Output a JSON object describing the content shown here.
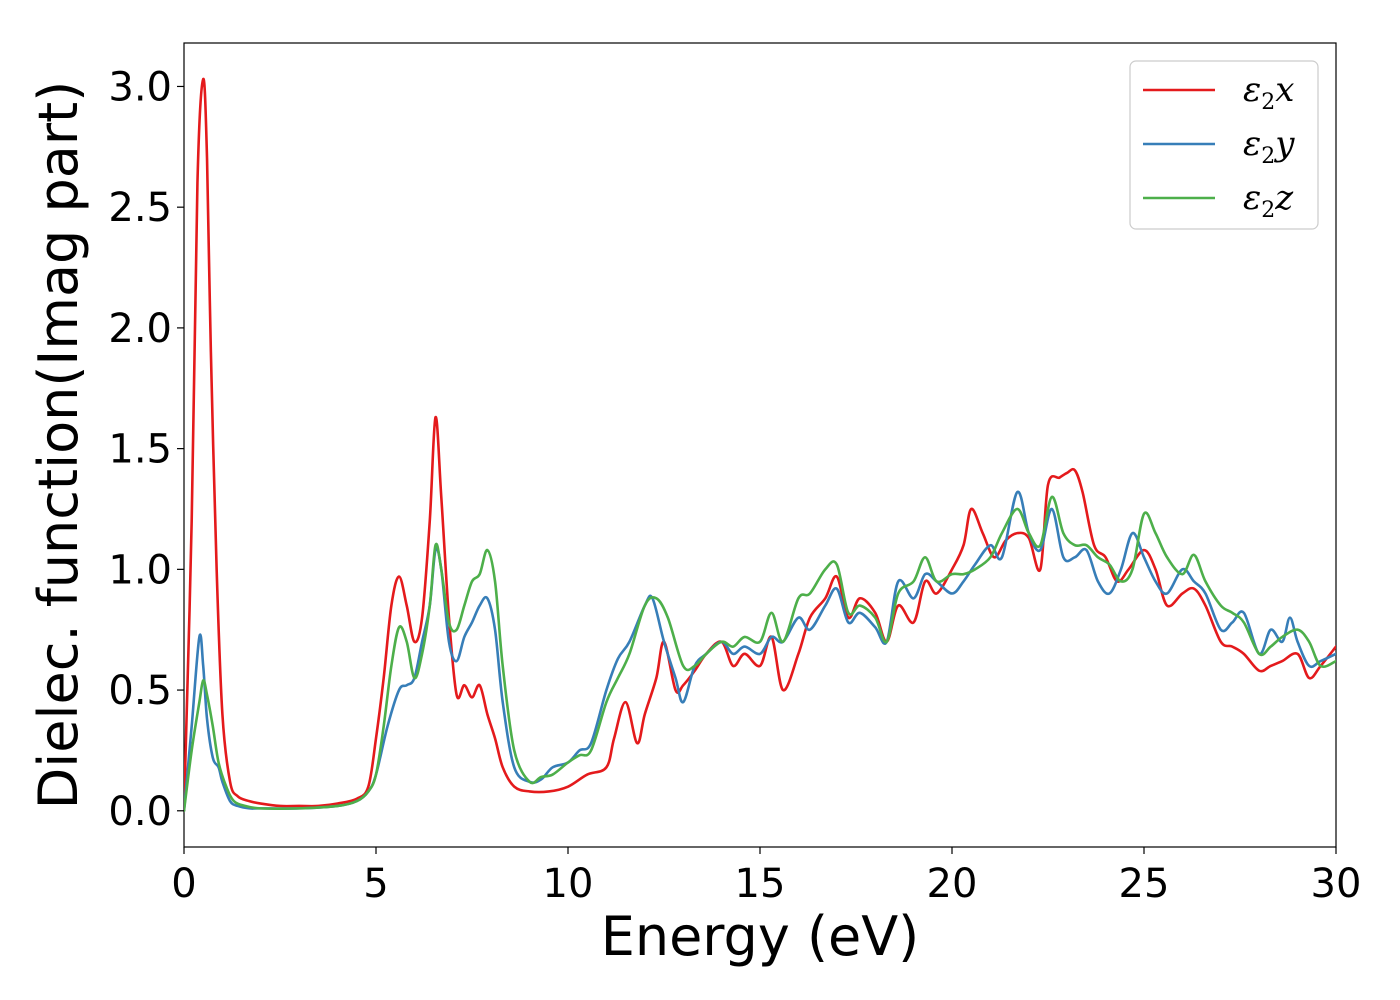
{
  "chart_data": {
    "type": "line",
    "title": "",
    "xlabel": "Energy (eV)",
    "ylabel": "Dielec. function(Imag part)",
    "xlim": [
      0,
      30
    ],
    "ylim": [
      -0.15,
      3.18
    ],
    "xticks": [
      0,
      5,
      10,
      15,
      20,
      25,
      30
    ],
    "yticks": [
      0.0,
      0.5,
      1.0,
      1.5,
      2.0,
      2.5,
      3.0
    ],
    "xtick_labels": [
      "0",
      "5",
      "10",
      "15",
      "20",
      "25",
      "30"
    ],
    "ytick_labels": [
      "0.0",
      "0.5",
      "1.0",
      "1.5",
      "2.0",
      "2.5",
      "3.0"
    ],
    "grid": false,
    "legend": {
      "position": "top-right"
    },
    "series": [
      {
        "name": "ε2x",
        "name_main": "ε",
        "name_sub": "2",
        "name_var": "x",
        "color": "#e41a1c",
        "x": [
          0,
          0.2,
          0.35,
          0.5,
          0.6,
          0.7,
          0.85,
          1.0,
          1.2,
          1.4,
          1.7,
          2.0,
          2.5,
          3,
          3.5,
          4,
          4.5,
          4.8,
          5.0,
          5.2,
          5.4,
          5.6,
          5.8,
          6.0,
          6.2,
          6.4,
          6.55,
          6.7,
          6.9,
          7.1,
          7.3,
          7.5,
          7.7,
          7.9,
          8.1,
          8.3,
          8.6,
          9.0,
          9.5,
          10.0,
          10.5,
          11.0,
          11.2,
          11.5,
          11.8,
          12.0,
          12.3,
          12.5,
          12.8,
          13.0,
          13.3,
          13.6,
          14.0,
          14.3,
          14.6,
          15.0,
          15.3,
          15.6,
          16.0,
          16.3,
          16.7,
          17.0,
          17.3,
          17.6,
          18.0,
          18.3,
          18.6,
          19.0,
          19.3,
          19.6,
          20.0,
          20.3,
          20.5,
          20.8,
          21.1,
          21.4,
          21.7,
          22.0,
          22.3,
          22.5,
          22.8,
          23.0,
          23.2,
          23.4,
          23.7,
          24.0,
          24.3,
          24.6,
          25.0,
          25.3,
          25.6,
          26.0,
          26.3,
          26.6,
          27.0,
          27.3,
          27.6,
          28.0,
          28.3,
          28.6,
          29.0,
          29.3,
          29.6,
          30.0
        ],
        "y": [
          0.0,
          1.2,
          2.6,
          3.03,
          2.7,
          1.9,
          1.0,
          0.4,
          0.12,
          0.06,
          0.04,
          0.03,
          0.02,
          0.02,
          0.02,
          0.03,
          0.05,
          0.1,
          0.3,
          0.55,
          0.85,
          0.97,
          0.85,
          0.7,
          0.8,
          1.2,
          1.63,
          1.3,
          0.8,
          0.48,
          0.52,
          0.47,
          0.52,
          0.4,
          0.3,
          0.18,
          0.1,
          0.08,
          0.08,
          0.1,
          0.15,
          0.18,
          0.3,
          0.45,
          0.28,
          0.4,
          0.55,
          0.7,
          0.5,
          0.52,
          0.58,
          0.65,
          0.7,
          0.6,
          0.65,
          0.6,
          0.72,
          0.5,
          0.65,
          0.8,
          0.88,
          0.97,
          0.8,
          0.88,
          0.82,
          0.7,
          0.85,
          0.78,
          0.95,
          0.9,
          1.0,
          1.1,
          1.25,
          1.15,
          1.05,
          1.12,
          1.15,
          1.13,
          1.0,
          1.35,
          1.38,
          1.4,
          1.41,
          1.32,
          1.1,
          1.05,
          0.95,
          1.0,
          1.08,
          1.0,
          0.85,
          0.9,
          0.92,
          0.85,
          0.7,
          0.68,
          0.65,
          0.58,
          0.6,
          0.62,
          0.65,
          0.55,
          0.6,
          0.68
        ]
      },
      {
        "name": "ε2y",
        "name_main": "ε",
        "name_sub": "2",
        "name_var": "y",
        "color": "#377eb8",
        "x": [
          0,
          0.2,
          0.4,
          0.5,
          0.6,
          0.75,
          0.9,
          1.0,
          1.2,
          1.4,
          1.7,
          2.0,
          3.0,
          4.0,
          4.5,
          4.8,
          5.0,
          5.3,
          5.6,
          5.8,
          6.0,
          6.2,
          6.4,
          6.55,
          6.7,
          6.9,
          7.1,
          7.3,
          7.5,
          7.7,
          7.9,
          8.1,
          8.3,
          8.6,
          9.0,
          9.3,
          9.6,
          10.0,
          10.3,
          10.6,
          11.0,
          11.3,
          11.6,
          12.0,
          12.2,
          12.5,
          12.8,
          13.0,
          13.3,
          13.6,
          14.0,
          14.3,
          14.6,
          15.0,
          15.3,
          15.6,
          16.0,
          16.3,
          16.7,
          17.0,
          17.3,
          17.6,
          18.0,
          18.3,
          18.6,
          19.0,
          19.3,
          19.6,
          20.0,
          20.3,
          20.6,
          21.0,
          21.3,
          21.7,
          22.0,
          22.3,
          22.6,
          22.9,
          23.2,
          23.5,
          23.8,
          24.1,
          24.4,
          24.7,
          25.0,
          25.3,
          25.6,
          26.0,
          26.3,
          26.6,
          27.0,
          27.3,
          27.6,
          28.0,
          28.3,
          28.6,
          28.8,
          29.0,
          29.3,
          29.6,
          30.0
        ],
        "y": [
          0.0,
          0.35,
          0.72,
          0.6,
          0.38,
          0.22,
          0.18,
          0.12,
          0.04,
          0.02,
          0.01,
          0.01,
          0.01,
          0.02,
          0.04,
          0.08,
          0.15,
          0.35,
          0.5,
          0.52,
          0.55,
          0.7,
          0.85,
          1.08,
          1.0,
          0.7,
          0.62,
          0.72,
          0.78,
          0.85,
          0.88,
          0.75,
          0.45,
          0.18,
          0.12,
          0.13,
          0.18,
          0.2,
          0.25,
          0.28,
          0.5,
          0.63,
          0.7,
          0.85,
          0.88,
          0.7,
          0.55,
          0.45,
          0.6,
          0.65,
          0.7,
          0.65,
          0.68,
          0.65,
          0.72,
          0.7,
          0.8,
          0.75,
          0.85,
          0.92,
          0.78,
          0.82,
          0.76,
          0.7,
          0.95,
          0.88,
          0.98,
          0.95,
          0.9,
          0.95,
          1.02,
          1.1,
          1.05,
          1.32,
          1.15,
          1.08,
          1.25,
          1.05,
          1.05,
          1.08,
          0.95,
          0.9,
          1.0,
          1.15,
          1.05,
          0.95,
          0.9,
          1.0,
          0.95,
          0.9,
          0.75,
          0.78,
          0.82,
          0.65,
          0.75,
          0.7,
          0.8,
          0.7,
          0.6,
          0.62,
          0.65
        ]
      },
      {
        "name": "ε2z",
        "name_main": "ε",
        "name_sub": "2",
        "name_var": "z",
        "color": "#4daf4a",
        "x": [
          0,
          0.2,
          0.4,
          0.5,
          0.6,
          0.75,
          0.9,
          1.1,
          1.3,
          1.6,
          2.0,
          3.0,
          4.0,
          4.5,
          4.8,
          5.0,
          5.2,
          5.4,
          5.6,
          5.8,
          6.0,
          6.2,
          6.4,
          6.55,
          6.7,
          6.9,
          7.1,
          7.3,
          7.5,
          7.7,
          7.9,
          8.1,
          8.3,
          8.6,
          9.0,
          9.3,
          9.6,
          10.0,
          10.3,
          10.6,
          11.0,
          11.3,
          11.6,
          12.0,
          12.3,
          12.6,
          13.0,
          13.3,
          13.6,
          14.0,
          14.3,
          14.6,
          15.0,
          15.3,
          15.6,
          16.0,
          16.3,
          16.7,
          17.0,
          17.3,
          17.6,
          18.0,
          18.3,
          18.6,
          19.0,
          19.3,
          19.6,
          20.0,
          20.3,
          20.6,
          21.0,
          21.3,
          21.7,
          22.0,
          22.3,
          22.6,
          22.9,
          23.2,
          23.5,
          23.8,
          24.1,
          24.4,
          24.7,
          25.0,
          25.3,
          25.6,
          26.0,
          26.3,
          26.6,
          27.0,
          27.3,
          27.6,
          28.0,
          28.3,
          28.6,
          29.0,
          29.3,
          29.6,
          30.0
        ],
        "y": [
          0.0,
          0.25,
          0.45,
          0.54,
          0.48,
          0.35,
          0.2,
          0.1,
          0.04,
          0.02,
          0.01,
          0.01,
          0.02,
          0.04,
          0.08,
          0.15,
          0.35,
          0.6,
          0.76,
          0.7,
          0.55,
          0.65,
          0.85,
          1.1,
          1.0,
          0.78,
          0.75,
          0.85,
          0.95,
          0.98,
          1.08,
          0.95,
          0.6,
          0.25,
          0.12,
          0.14,
          0.15,
          0.2,
          0.23,
          0.25,
          0.45,
          0.55,
          0.65,
          0.85,
          0.88,
          0.8,
          0.6,
          0.6,
          0.65,
          0.7,
          0.68,
          0.72,
          0.7,
          0.82,
          0.7,
          0.88,
          0.9,
          1.0,
          1.02,
          0.82,
          0.85,
          0.8,
          0.7,
          0.9,
          0.95,
          1.05,
          0.95,
          0.98,
          0.98,
          1.0,
          1.05,
          1.15,
          1.25,
          1.15,
          1.1,
          1.3,
          1.15,
          1.1,
          1.1,
          1.05,
          1.02,
          0.95,
          1.0,
          1.23,
          1.15,
          1.05,
          0.98,
          1.06,
          0.95,
          0.85,
          0.82,
          0.78,
          0.65,
          0.68,
          0.72,
          0.75,
          0.7,
          0.6,
          0.62
        ]
      }
    ]
  }
}
